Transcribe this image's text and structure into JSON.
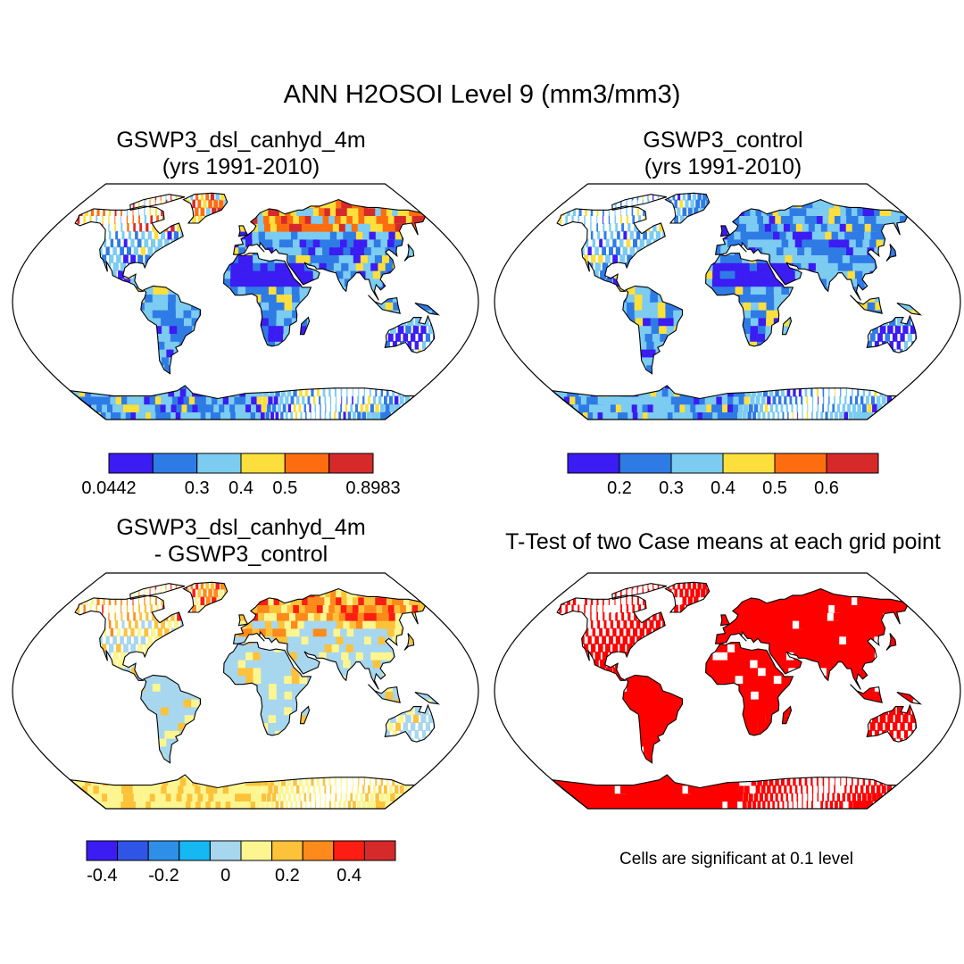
{
  "title": "ANN H2OSOI Level 9 (mm3/mm3)",
  "panels": [
    {
      "id": "p1",
      "title_line1": "GSWP3_dsl_canhyd_4m",
      "title_line2": "(yrs 1991-2010)",
      "fill_scheme": "case1",
      "colorbar": {
        "colors": [
          "#3b1cf2",
          "#2f7be6",
          "#7ccbf1",
          "#fcdf3c",
          "#fd6d0f",
          "#d62a2a"
        ],
        "labels": [
          "0.0442",
          "0.3",
          "0.4",
          "0.5",
          "0.8983"
        ],
        "label_positions": [
          "edge-0",
          "edge-2",
          "edge-3",
          "edge-4",
          "edge-6"
        ]
      }
    },
    {
      "id": "p2",
      "title_line1": "GSWP3_control",
      "title_line2": "(yrs 1991-2010)",
      "fill_scheme": "case2",
      "colorbar": {
        "colors": [
          "#3b1cf2",
          "#2f7be6",
          "#7ccbf1",
          "#fcdf3c",
          "#fd6d0f",
          "#d62a2a"
        ],
        "labels": [
          "0.2",
          "0.3",
          "0.4",
          "0.5",
          "0.6"
        ],
        "label_positions": [
          "edge-1",
          "edge-2",
          "edge-3",
          "edge-4",
          "edge-5"
        ]
      }
    },
    {
      "id": "p3",
      "title_line1": "GSWP3_dsl_canhyd_4m",
      "title_line2": "- GSWP3_control",
      "fill_scheme": "difference",
      "colorbar": {
        "colors": [
          "#3b1cf2",
          "#2f55e6",
          "#2f8fe8",
          "#15b8f2",
          "#a7d6ef",
          "#fdf690",
          "#fcc23a",
          "#fd8a1a",
          "#fd1d12",
          "#d62a2a"
        ],
        "labels": [
          "-0.4",
          "-0.2",
          "0",
          "0.2",
          "0.4"
        ],
        "label_positions": [
          "mid-1",
          "mid-3",
          "mid-5",
          "mid-7",
          "mid-9"
        ]
      }
    },
    {
      "id": "p4",
      "title_line1": "T-Test of two Case means at each grid point",
      "title_line2": "",
      "fill_scheme": "significance",
      "note": "Cells are significant at 0.1 level"
    }
  ]
}
